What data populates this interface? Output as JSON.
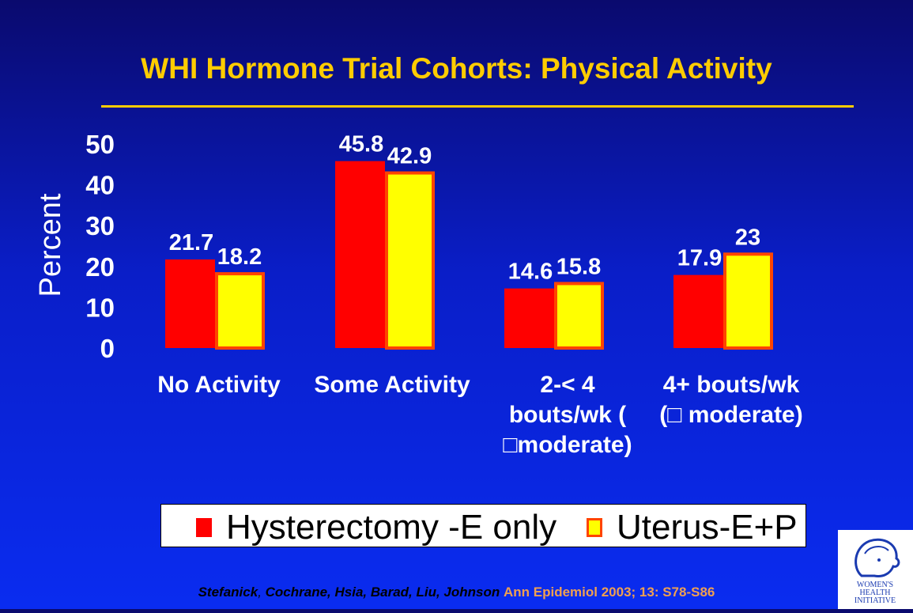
{
  "title": "WHI Hormone Trial Cohorts: Physical Activity",
  "colors": {
    "hysterectomy": "#ff0000",
    "uterus_fill": "#ffff00",
    "uterus_border": "#ff4400",
    "title": "#ffcc00",
    "background": "#0a2ae0"
  },
  "chart_data": {
    "type": "bar",
    "ylabel": "Percent",
    "xlabel": "",
    "ylim": [
      0,
      50
    ],
    "yticks": [
      0,
      10,
      20,
      30,
      40,
      50
    ],
    "grid": false,
    "legend_position": "bottom",
    "categories": [
      [
        "No Activity"
      ],
      [
        "Some Activity"
      ],
      [
        "2-< 4",
        "bouts/wk (",
        "□moderate)"
      ],
      [
        "4+ bouts/wk",
        "(□ moderate)"
      ]
    ],
    "series": [
      {
        "name": "Hysterectomy -E only",
        "values": [
          21.7,
          45.8,
          14.6,
          17.9
        ],
        "labels": [
          "21.7",
          "45.8",
          "14.6",
          "17.9"
        ]
      },
      {
        "name": "Uterus-E+P",
        "values": [
          18.2,
          42.9,
          15.8,
          23
        ],
        "labels": [
          "18.2",
          "42.9",
          "15.8",
          "23"
        ]
      }
    ]
  },
  "citation": {
    "authors_a": "Stefanick",
    "sep": ", ",
    "authors_b": "Cochrane, Hsia, Barad, Liu, Johnson",
    "journal": "Ann Epidemiol 2003; 13: S78-S86"
  },
  "logo_icon": "womens-health-initiative-logo",
  "logo_text": "WOMEN'S HEALTH INITIATIVE"
}
